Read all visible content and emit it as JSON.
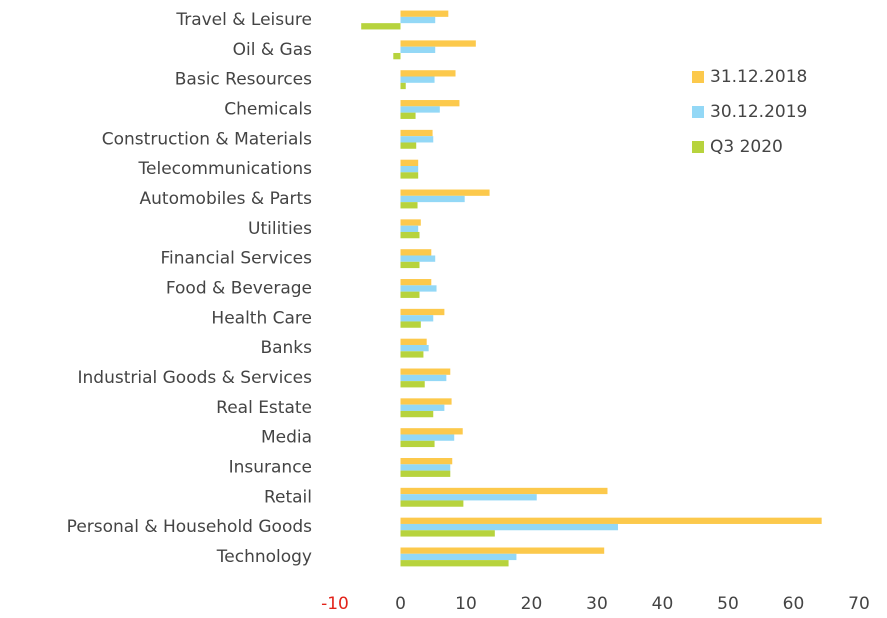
{
  "chart_data": {
    "type": "hbar",
    "categories": [
      "Travel & Leisure",
      "Oil & Gas",
      "Basic Resources",
      "Chemicals",
      "Construction & Materials",
      "Telecommunications",
      "Automobiles & Parts",
      "Utilities",
      "Financial Services",
      "Food & Beverage",
      "Health Care",
      "Banks",
      "Industrial Goods & Services",
      "Real Estate",
      "Media",
      "Insurance",
      "Retail",
      "Personal & Household Goods",
      "Technology"
    ],
    "series": [
      {
        "name": "31.12.2018",
        "color": "#fcc94c",
        "values": [
          7.3,
          11.5,
          8.4,
          9,
          4.9,
          2.7,
          13.6,
          3.1,
          4.7,
          4.7,
          6.7,
          4,
          7.6,
          7.8,
          9.5,
          7.9,
          31.6,
          64.3,
          31.1
        ]
      },
      {
        "name": "30.12.2019",
        "color": "#93d8f6",
        "values": [
          5.3,
          5.3,
          5.2,
          6,
          5,
          2.7,
          9.8,
          2.7,
          5.3,
          5.5,
          5,
          4.3,
          7,
          6.7,
          8.2,
          7.6,
          20.8,
          33.2,
          17.7
        ]
      },
      {
        "name": "Q3 2020",
        "color": "#b7d33d",
        "values": [
          -6,
          -1.1,
          0.8,
          2.3,
          2.4,
          2.7,
          2.6,
          2.9,
          2.9,
          2.9,
          3.1,
          3.5,
          3.7,
          5,
          5.2,
          7.6,
          9.6,
          14.4,
          16.5
        ]
      }
    ],
    "xlim": [
      -10,
      70
    ],
    "xticks": [
      -10,
      0,
      10,
      20,
      30,
      40,
      50,
      60,
      70
    ],
    "legend": "top-right"
  }
}
